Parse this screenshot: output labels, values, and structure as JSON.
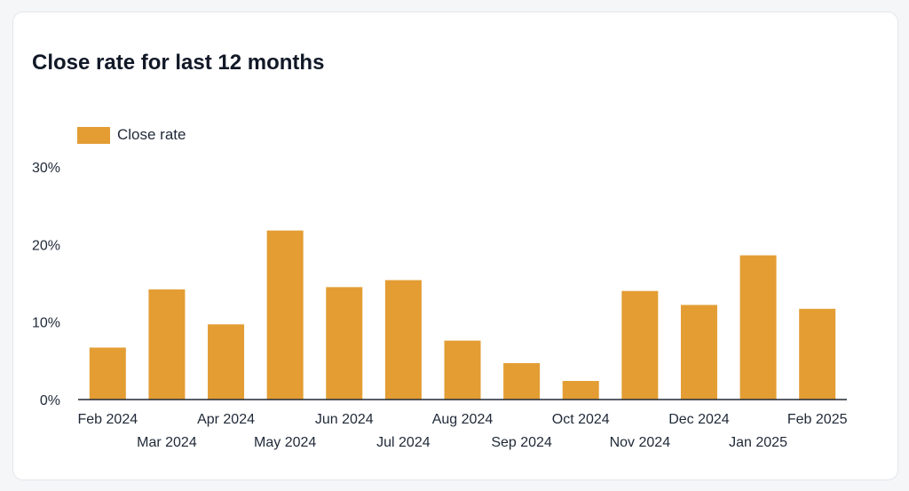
{
  "chart_data": {
    "type": "bar",
    "title": "Close rate for last 12 months",
    "categories": [
      "Feb 2024",
      "Mar 2024",
      "Apr 2024",
      "May 2024",
      "Jun 2024",
      "Jul 2024",
      "Aug 2024",
      "Sep 2024",
      "Oct 2024",
      "Nov 2024",
      "Dec 2024",
      "Jan 2025",
      "Feb 2025"
    ],
    "series": [
      {
        "name": "Close rate",
        "color": "#e39d33",
        "values": [
          6.7,
          14.2,
          9.7,
          21.8,
          14.5,
          15.4,
          7.6,
          4.7,
          2.4,
          14.0,
          12.2,
          18.6,
          11.7
        ]
      }
    ],
    "ylim": [
      0,
      30
    ],
    "yticks": [
      "0%",
      "10%",
      "20%",
      "30%"
    ],
    "ytick_values": [
      0,
      10,
      20,
      30
    ],
    "legend_position": "top-left",
    "grid": false
  }
}
